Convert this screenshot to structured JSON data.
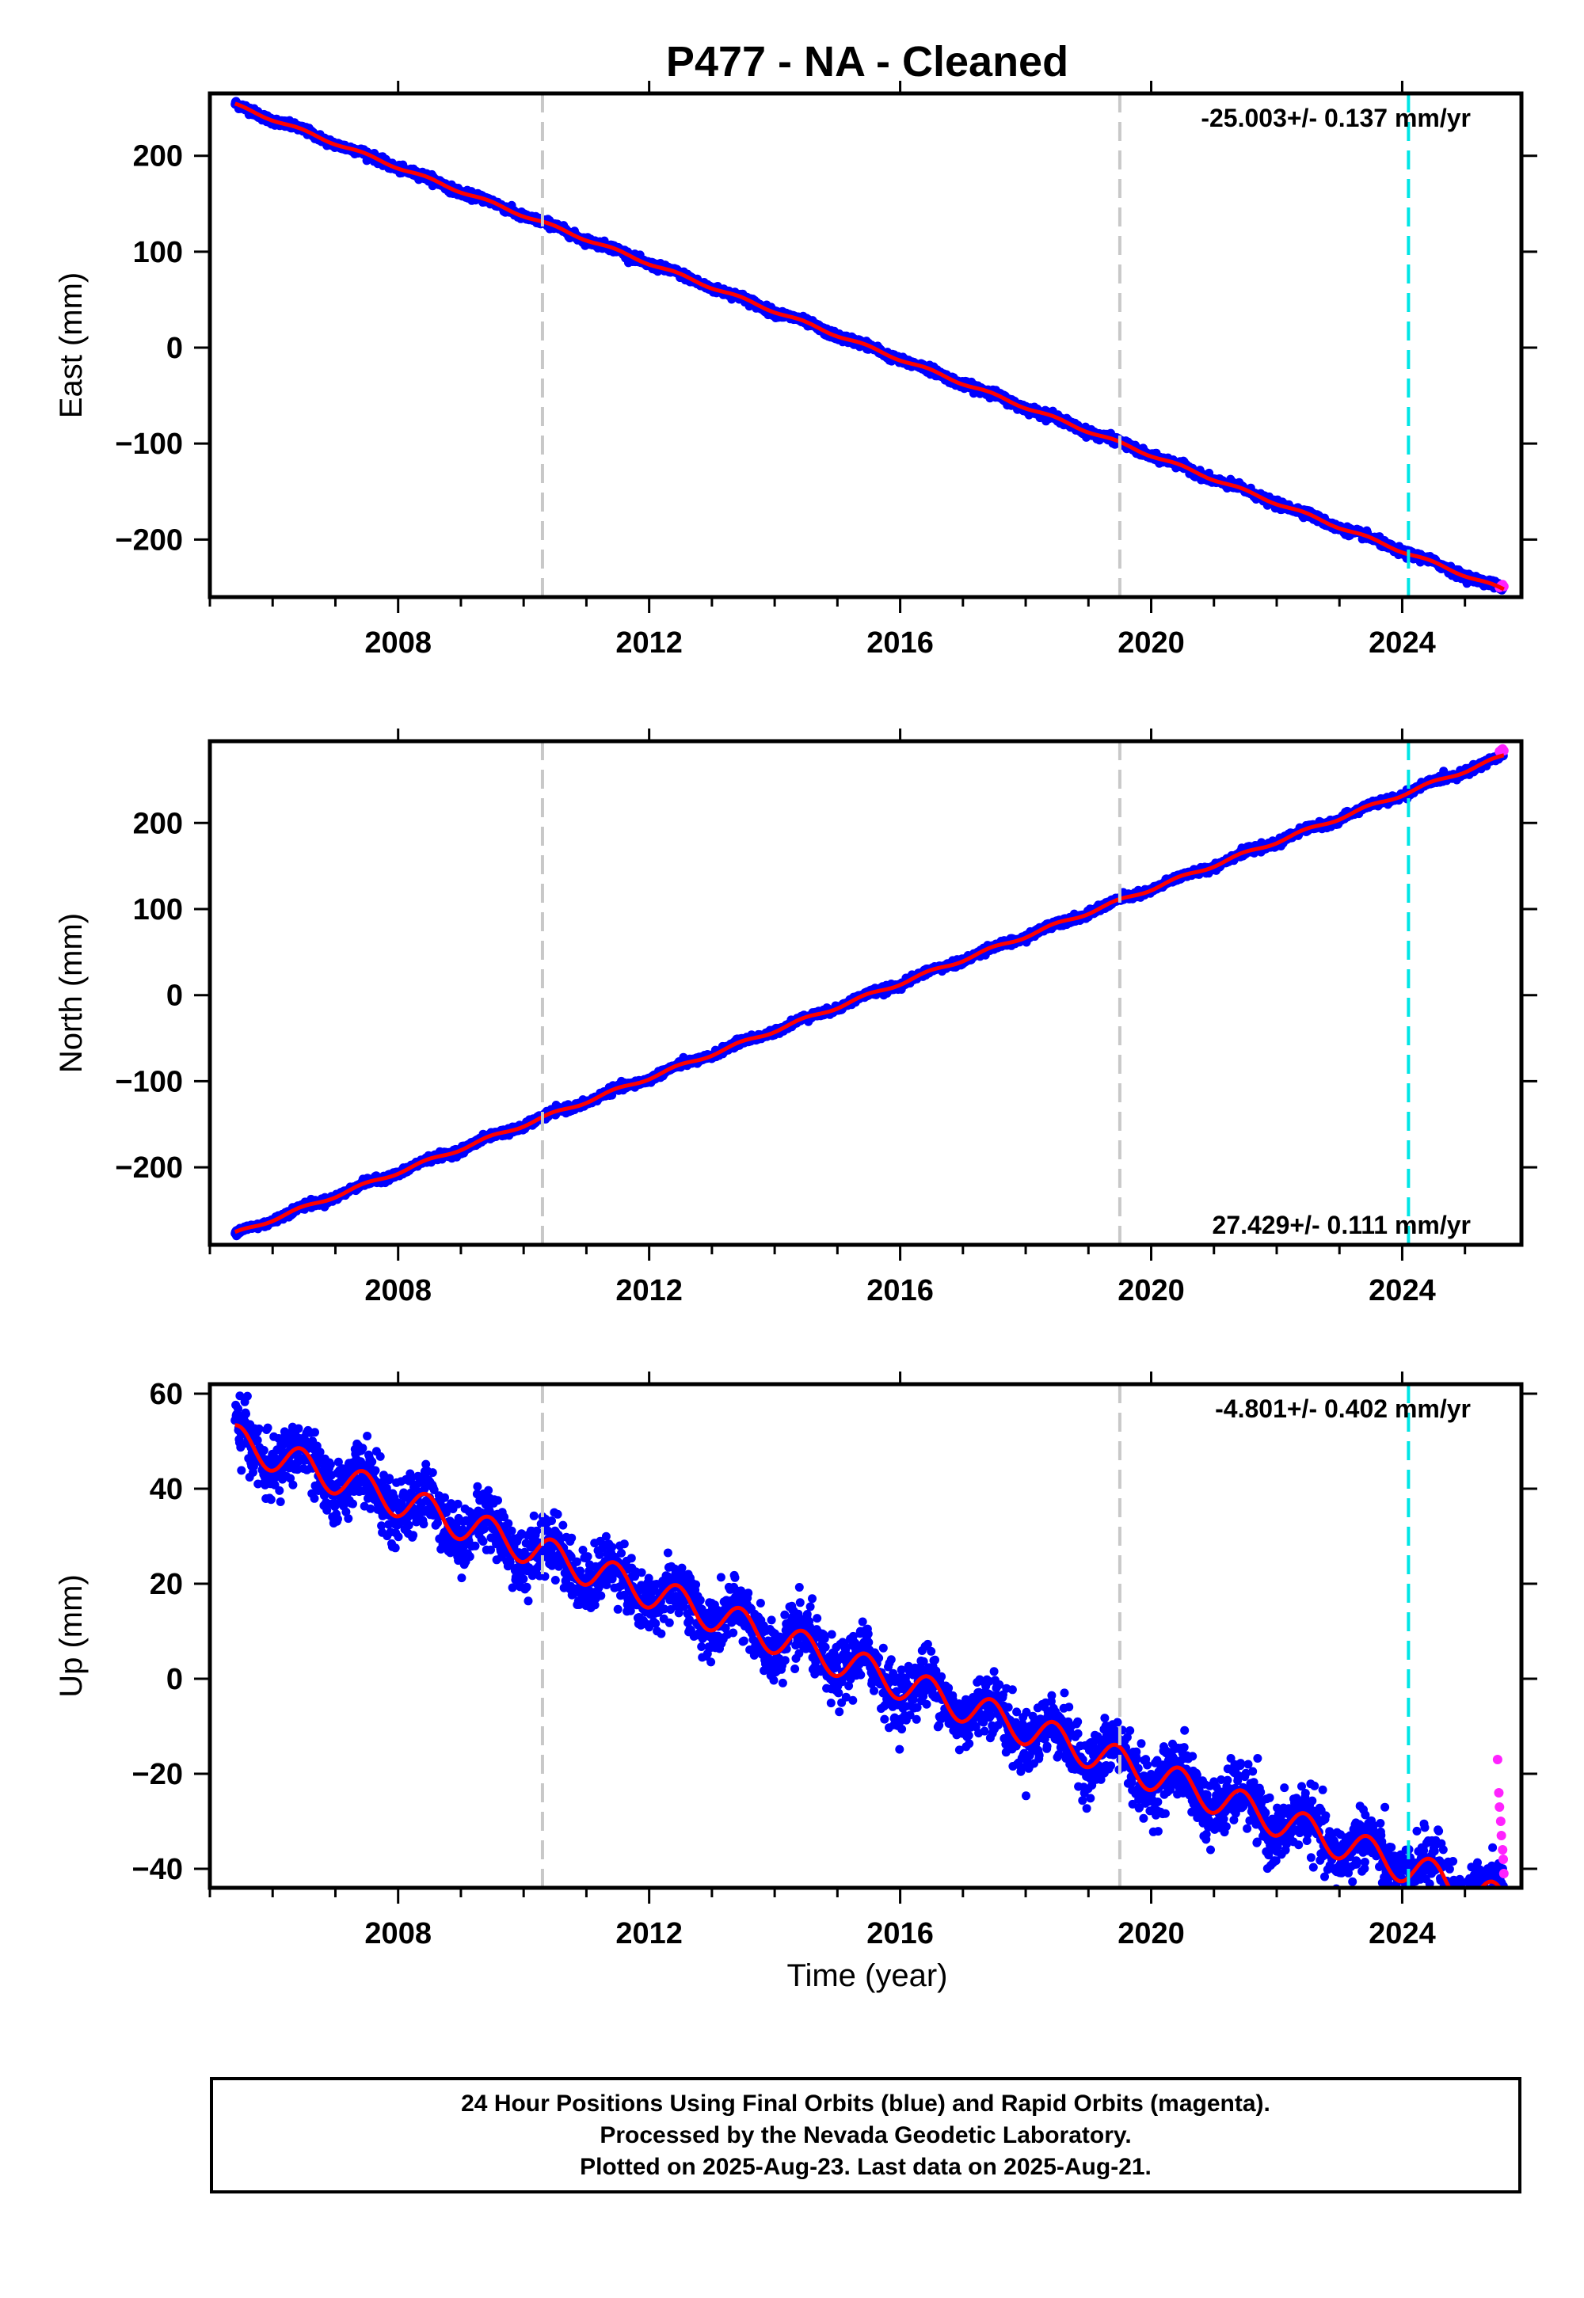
{
  "figure": {
    "title": "P477  - NA - Cleaned",
    "xlabel": "Time (year)",
    "colors": {
      "final_orbits": "#0000ff",
      "rapid_orbits": "#ff22ff",
      "model_fit": "#ff0000",
      "equipment_change": "#c8c8c8",
      "event_line": "#00e5e5"
    }
  },
  "footer": {
    "line1": "24 Hour Positions Using Final Orbits (blue) and Rapid Orbits (magenta).",
    "line2": "Processed by the Nevada Geodetic Laboratory.",
    "line3": "Plotted on 2025-Aug-23. Last data on 2025-Aug-21."
  },
  "chart_data": [
    {
      "type": "scatter",
      "ylabel": "East (mm)",
      "rate_label": "-25.003+/- 0.137 mm/yr",
      "rate_position": "top-right",
      "xlim": [
        2005.0,
        2025.9
      ],
      "ylim": [
        -260,
        265
      ],
      "xticks": [
        2008,
        2012,
        2016,
        2020,
        2024
      ],
      "yticks": [
        -200,
        -100,
        0,
        100,
        200
      ],
      "gray_dashed_lines_x": [
        2010.3,
        2019.5
      ],
      "cyan_dashed_line_x": 2024.1,
      "data_start": 2005.4,
      "data_end": 2025.62,
      "start_value": 253,
      "rate_mm_per_yr": -25.003,
      "seasonal_amplitude_mm": 1.5,
      "scatter_mm": 2.0,
      "rapid_points": [
        [
          2025.55,
          -250
        ],
        [
          2025.58,
          -248
        ],
        [
          2025.6,
          -247
        ],
        [
          2025.62,
          -249
        ]
      ]
    },
    {
      "type": "scatter",
      "ylabel": "North (mm)",
      "rate_label": "27.429+/- 0.111 mm/yr",
      "rate_position": "bottom-right",
      "xlim": [
        2005.0,
        2025.9
      ],
      "ylim": [
        -290,
        295
      ],
      "xticks": [
        2008,
        2012,
        2016,
        2020,
        2024
      ],
      "yticks": [
        -200,
        -100,
        0,
        100,
        200
      ],
      "gray_dashed_lines_x": [
        2010.3,
        2019.5
      ],
      "cyan_dashed_line_x": 2024.1,
      "data_start": 2005.4,
      "data_end": 2025.62,
      "start_value": -277,
      "rate_mm_per_yr": 27.429,
      "seasonal_amplitude_mm": 2.0,
      "scatter_mm": 2.0,
      "rapid_points": [
        [
          2025.55,
          283
        ],
        [
          2025.58,
          285
        ],
        [
          2025.6,
          286
        ],
        [
          2025.62,
          284
        ]
      ]
    },
    {
      "type": "scatter",
      "ylabel": "Up (mm)",
      "rate_label": "-4.801+/- 0.402 mm/yr",
      "rate_position": "top-right",
      "xlim": [
        2005.0,
        2025.9
      ],
      "ylim": [
        -44,
        62
      ],
      "xticks": [
        2008,
        2012,
        2016,
        2020,
        2024
      ],
      "yticks": [
        -40,
        -20,
        0,
        20,
        40,
        60
      ],
      "gray_dashed_lines_x": [
        2010.3,
        2019.5
      ],
      "cyan_dashed_line_x": 2024.1,
      "data_start": 2005.4,
      "data_end": 2025.62,
      "start_value": 50,
      "rate_mm_per_yr": -4.801,
      "seasonal_amplitude_mm": 3.5,
      "scatter_mm": 3.2,
      "rapid_points": [
        [
          2025.52,
          -17
        ],
        [
          2025.54,
          -24
        ],
        [
          2025.55,
          -27
        ],
        [
          2025.57,
          -30
        ],
        [
          2025.58,
          -33
        ],
        [
          2025.6,
          -36
        ],
        [
          2025.61,
          -38
        ],
        [
          2025.62,
          -41
        ]
      ]
    }
  ]
}
